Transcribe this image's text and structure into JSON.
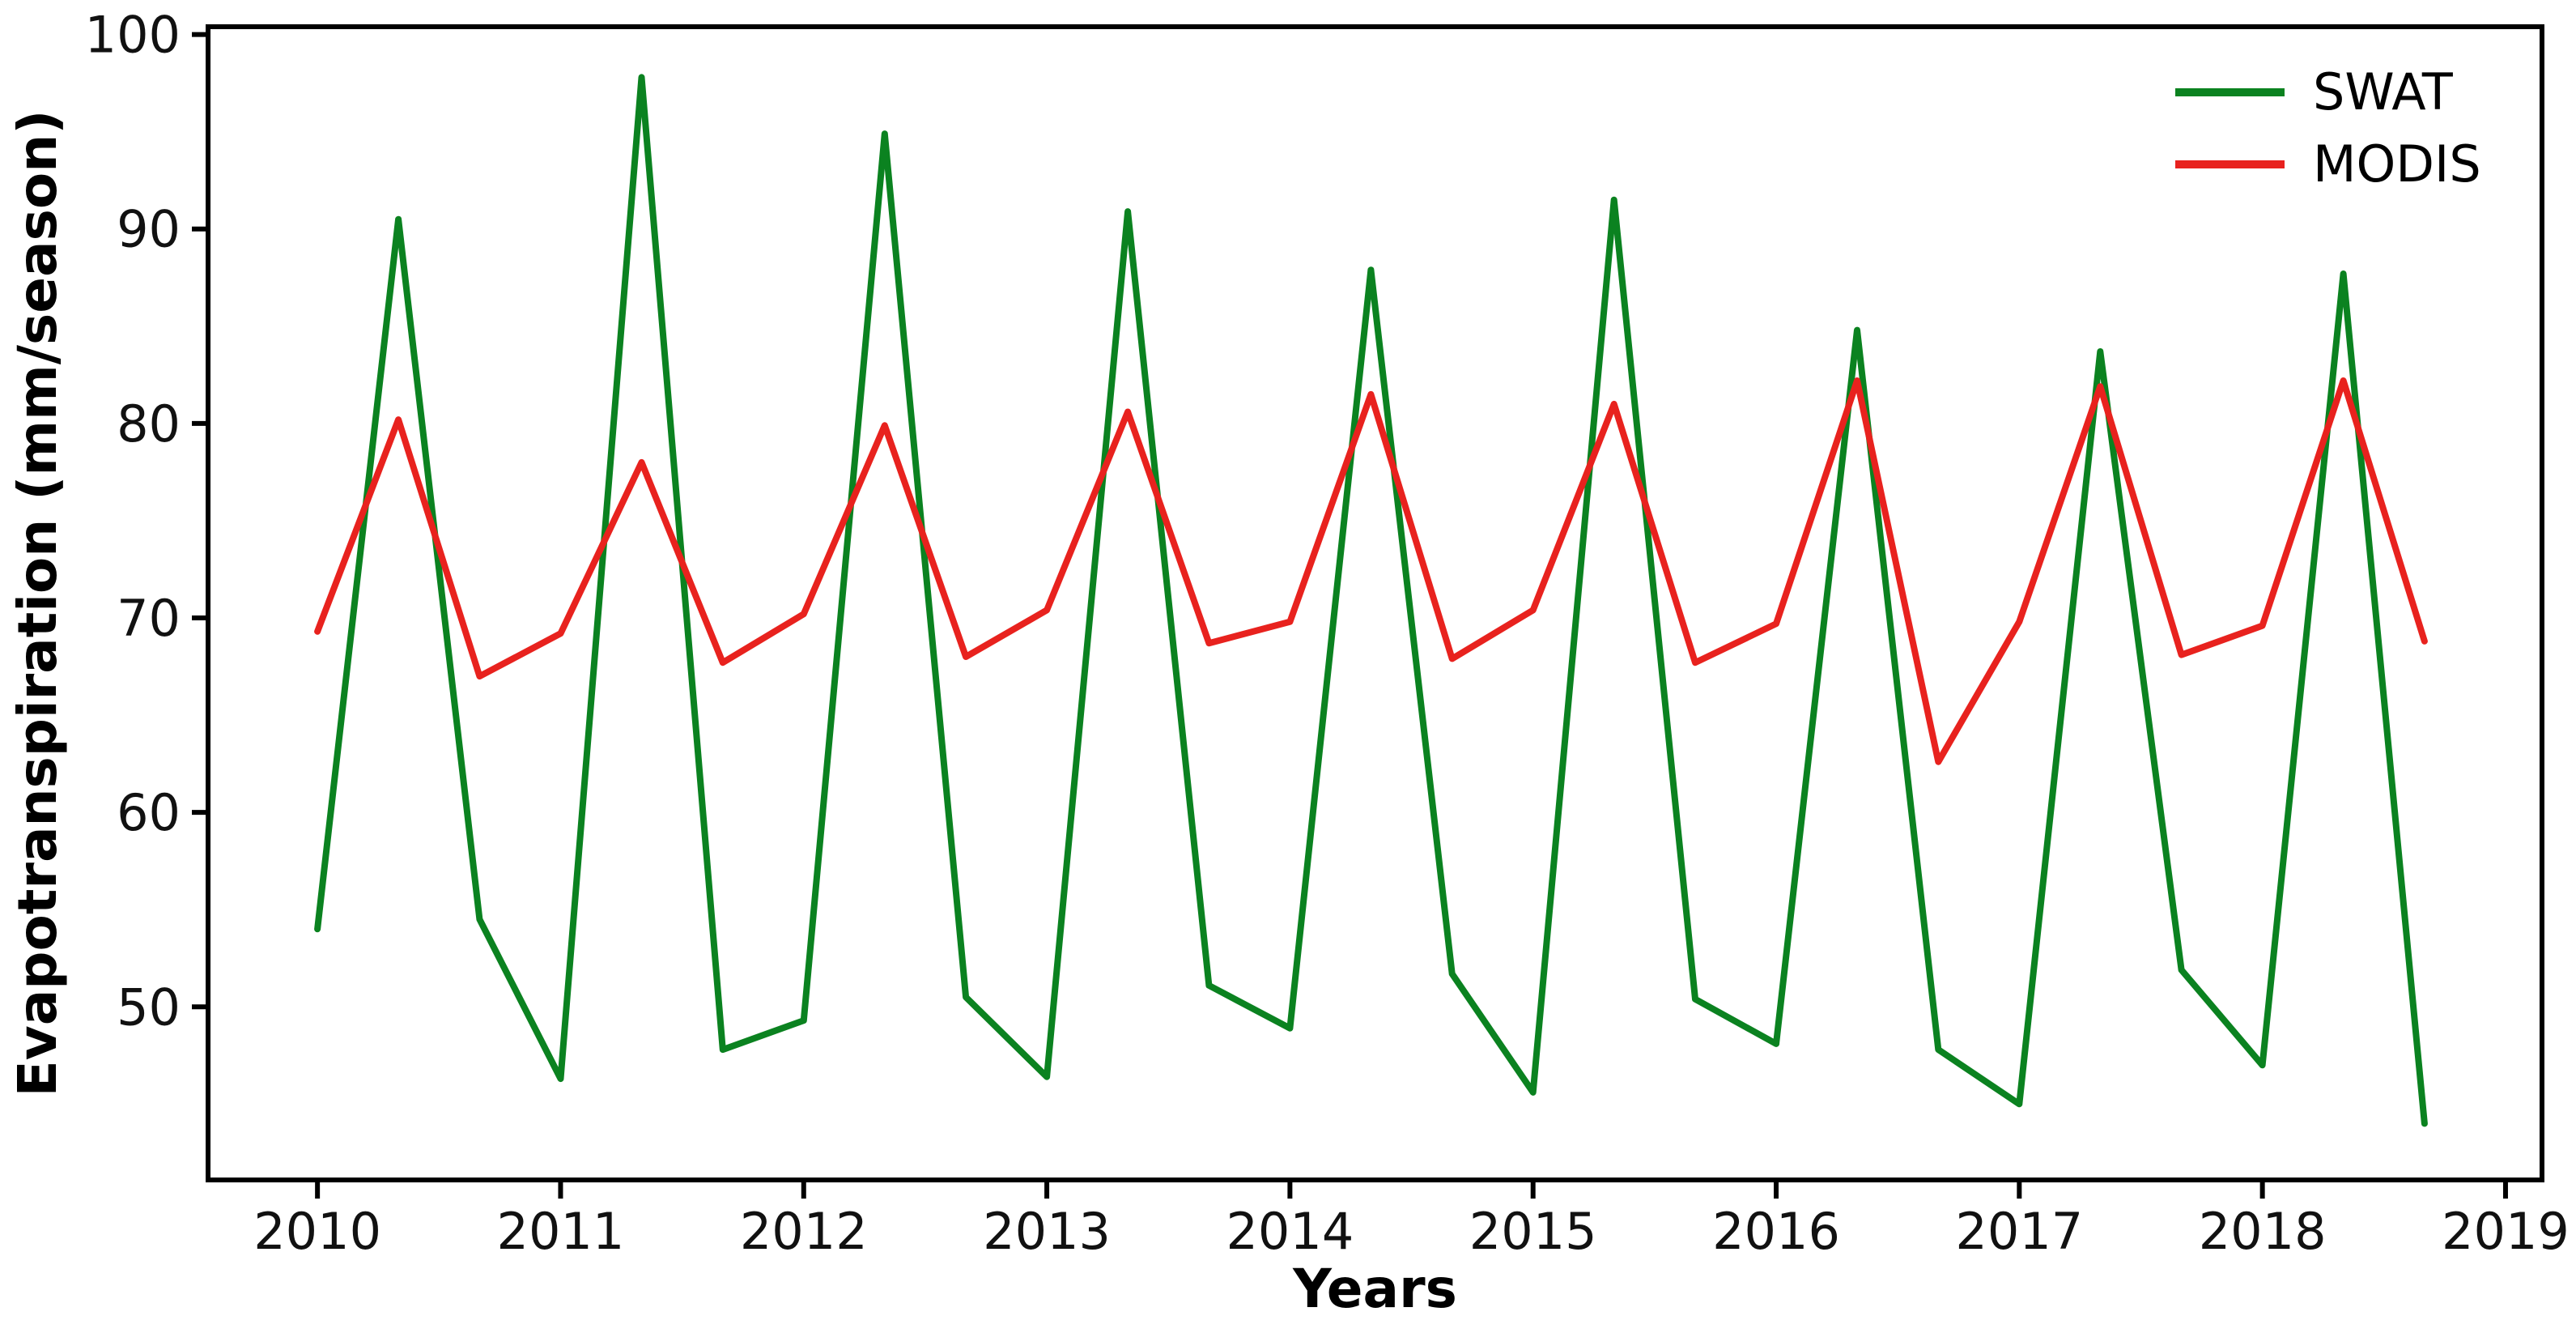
{
  "chart_data": {
    "type": "line",
    "title": "",
    "xlabel": "Years",
    "ylabel": "Evapotranspiration (mm/season)",
    "x_ticks": [
      2010,
      2011,
      2012,
      2013,
      2014,
      2015,
      2016,
      2017,
      2018,
      2019
    ],
    "y_ticks": [
      50,
      60,
      70,
      80,
      90,
      100
    ],
    "xlim": [
      2009.55,
      2019.15
    ],
    "ylim": [
      41.1,
      100.4
    ],
    "grid": false,
    "legend_position": "upper right",
    "x": [
      2010.0,
      2010.333,
      2010.667,
      2011.0,
      2011.333,
      2011.667,
      2012.0,
      2012.333,
      2012.667,
      2013.0,
      2013.333,
      2013.667,
      2014.0,
      2014.333,
      2014.667,
      2015.0,
      2015.333,
      2015.667,
      2016.0,
      2016.333,
      2016.667,
      2017.0,
      2017.333,
      2017.667,
      2018.0,
      2018.333,
      2018.667
    ],
    "series": [
      {
        "name": "SWAT",
        "color": "#0b8220",
        "values": [
          54.0,
          90.5,
          54.5,
          46.3,
          97.8,
          47.8,
          49.3,
          94.9,
          50.5,
          46.4,
          90.9,
          51.1,
          48.9,
          87.9,
          51.7,
          45.6,
          91.5,
          50.4,
          48.1,
          84.8,
          47.8,
          45.0,
          83.7,
          51.9,
          47.0,
          87.7,
          44.0
        ]
      },
      {
        "name": "MODIS",
        "color": "#e8221e",
        "values": [
          69.3,
          80.2,
          67.0,
          69.2,
          78.0,
          67.7,
          70.2,
          79.9,
          68.0,
          70.4,
          80.6,
          68.7,
          69.8,
          81.5,
          67.9,
          70.4,
          81.0,
          67.7,
          69.7,
          82.2,
          62.6,
          69.8,
          81.9,
          68.1,
          69.6,
          82.2,
          68.8
        ]
      }
    ],
    "axis_color": "#000000",
    "tick_label_color": "#111111"
  }
}
